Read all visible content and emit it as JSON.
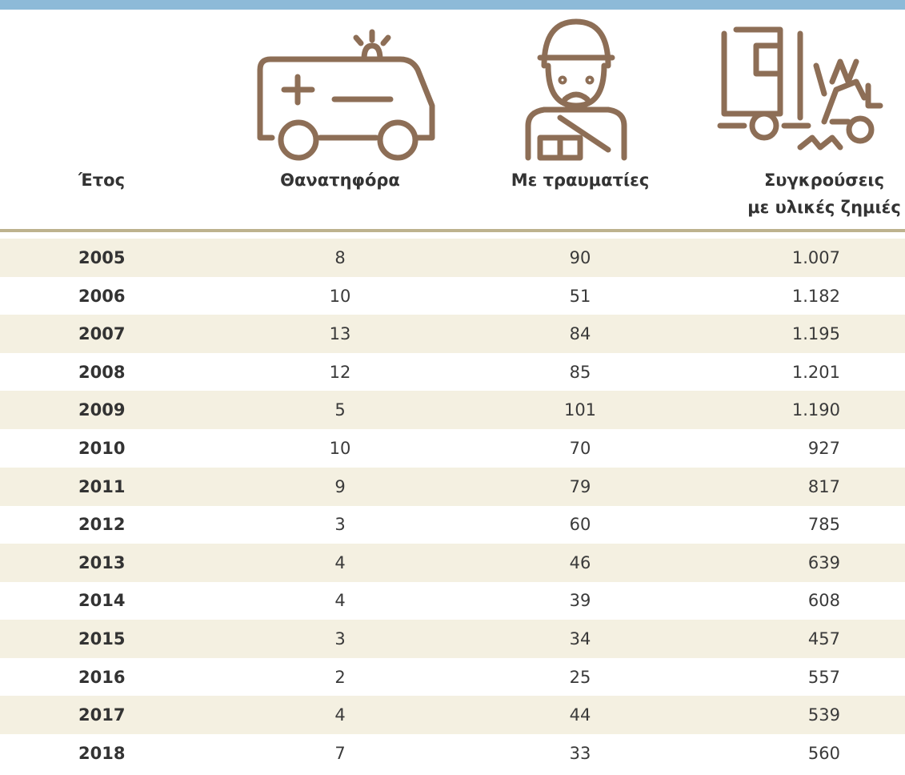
{
  "table": {
    "headers": [
      "Έτος",
      "Θανατηφόρα",
      "Με τραυματίες",
      "Συγκρούσεις\nμε υλικές ζημιές"
    ],
    "rows": [
      [
        "2005",
        "8",
        "90",
        "1.007"
      ],
      [
        "2006",
        "10",
        "51",
        "1.182"
      ],
      [
        "2007",
        "13",
        "84",
        "1.195"
      ],
      [
        "2008",
        "12",
        "85",
        "1.201"
      ],
      [
        "2009",
        "5",
        "101",
        "1.190"
      ],
      [
        "2010",
        "10",
        "70",
        "927"
      ],
      [
        "2011",
        "9",
        "79",
        "817"
      ],
      [
        "2012",
        "3",
        "60",
        "785"
      ],
      [
        "2013",
        "4",
        "46",
        "639"
      ],
      [
        "2014",
        "4",
        "39",
        "608"
      ],
      [
        "2015",
        "3",
        "34",
        "457"
      ],
      [
        "2016",
        "2",
        "25",
        "557"
      ],
      [
        "2017",
        "4",
        "44",
        "539"
      ],
      [
        "2018",
        "7",
        "33",
        "560"
      ]
    ]
  }
}
